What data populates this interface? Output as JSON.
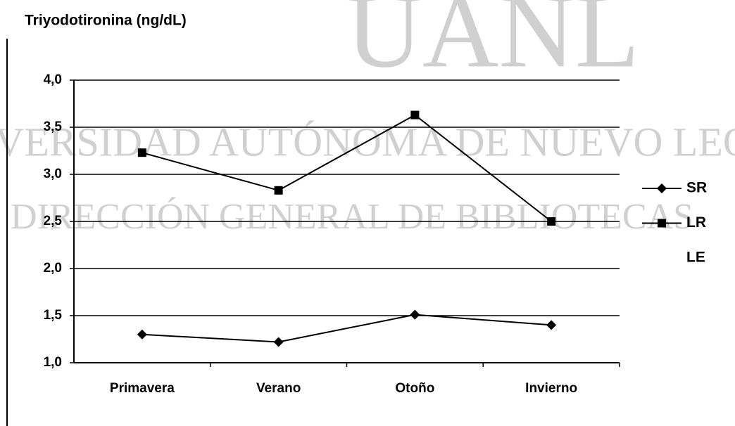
{
  "watermark": {
    "logo": "UANL",
    "line1": "UNIVERSIDAD AUTÓNOMA DE NUEVO LEÓN",
    "line2": "DIRECCIÓN GENERAL DE BIBLIOTECAS"
  },
  "chart_data": {
    "type": "line",
    "title": "Triyodotironina  (ng/dL)",
    "categories": [
      "Primavera",
      "Verano",
      "Otoño",
      "Invierno"
    ],
    "series": [
      {
        "name": "SR",
        "color": "#000000",
        "marker": "diamond",
        "values": [
          1.3,
          1.22,
          1.51,
          1.4
        ]
      },
      {
        "name": "LR",
        "color": "#000000",
        "marker": "square",
        "values": [
          3.23,
          2.83,
          3.63,
          2.5
        ]
      },
      {
        "name": "LE",
        "color": "#000000",
        "marker": "none",
        "values": [
          null,
          null,
          null,
          null
        ]
      }
    ],
    "ylim": [
      1,
      4
    ],
    "yticks": [
      {
        "value": 1,
        "label": "1,0"
      },
      {
        "value": 1.5,
        "label": "1,5"
      },
      {
        "value": 2,
        "label": "2,0"
      },
      {
        "value": 2.5,
        "label": "2,5"
      },
      {
        "value": 3,
        "label": "3,0"
      },
      {
        "value": 3.5,
        "label": "3,5"
      },
      {
        "value": 4,
        "label": "4,0"
      }
    ],
    "grid": true,
    "legend": "right"
  }
}
